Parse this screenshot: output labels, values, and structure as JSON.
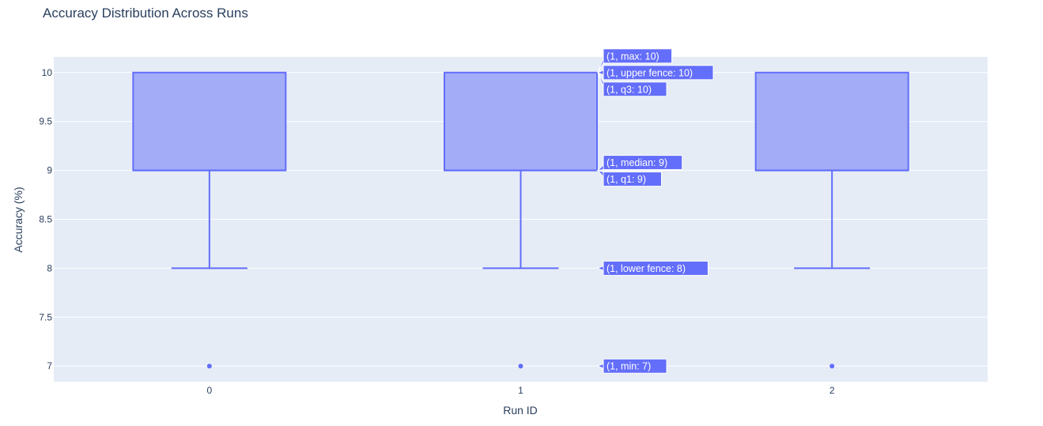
{
  "chart_data": {
    "type": "box",
    "title": "Accuracy Distribution Across Runs",
    "xlabel": "Run ID",
    "ylabel": "Accuracy (%)",
    "ylim": [
      6.84,
      10.16
    ],
    "yticks": [
      7,
      7.5,
      8,
      8.5,
      9,
      9.5,
      10
    ],
    "ytick_labels": [
      "7",
      "7.5",
      "8",
      "8.5",
      "9",
      "9.5",
      "10"
    ],
    "grid": true,
    "categories": [
      "0",
      "1",
      "2"
    ],
    "boxes": [
      {
        "x": "0",
        "min": 7,
        "lower_fence": 8,
        "q1": 9,
        "median": 9,
        "q3": 10,
        "upper_fence": 10,
        "max": 10,
        "outliers": [
          7
        ]
      },
      {
        "x": "1",
        "min": 7,
        "lower_fence": 8,
        "q1": 9,
        "median": 9,
        "q3": 10,
        "upper_fence": 10,
        "max": 10,
        "outliers": [
          7
        ]
      },
      {
        "x": "2",
        "min": 7,
        "lower_fence": 8,
        "q1": 9,
        "median": 9,
        "q3": 10,
        "upper_fence": 10,
        "max": 10,
        "outliers": [
          7
        ]
      }
    ],
    "hover": {
      "box": "1",
      "labels": [
        {
          "key": "max",
          "text": "(1, max: 10)",
          "value": 10
        },
        {
          "key": "upper_fence",
          "text": "(1, upper fence: 10)",
          "value": 10
        },
        {
          "key": "q3",
          "text": "(1, q3: 10)",
          "value": 10
        },
        {
          "key": "median",
          "text": "(1, median: 9)",
          "value": 9
        },
        {
          "key": "q1",
          "text": "(1, q1: 9)",
          "value": 9
        },
        {
          "key": "lower_fence",
          "text": "(1, lower fence: 8)",
          "value": 8
        },
        {
          "key": "min",
          "text": "(1, min: 7)",
          "value": 7
        }
      ]
    },
    "colors": {
      "box_fill": "#a3acf7",
      "box_line": "#636efa",
      "plot_bg": "#e5ecf6",
      "grid": "#ffffff",
      "text": "#2a3f5f",
      "tooltip_bg": "#636efa",
      "tooltip_text": "#ffffff"
    }
  }
}
